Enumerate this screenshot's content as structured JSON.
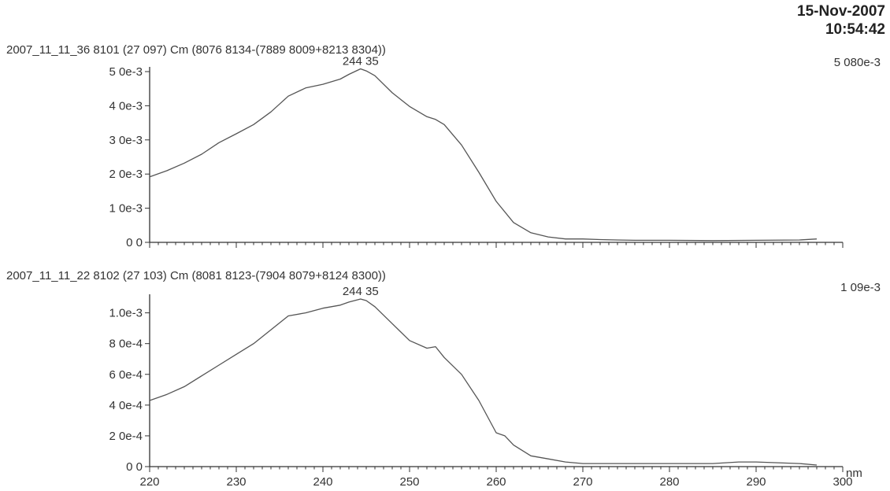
{
  "timestamp": {
    "date": "15-Nov-2007",
    "time": "10:54:42"
  },
  "chart_data": [
    {
      "type": "line",
      "header": "2007_11_11_36 8101 (27 097) Cm (8076 8134-(7889 8009+8213 8304))",
      "peak_label": "244 35",
      "max_label": "5 080e-3",
      "xlabel": "",
      "ylabel": "",
      "xlim": [
        220,
        300
      ],
      "ylim": [
        0,
        0.005
      ],
      "yticks": [
        0,
        0.001,
        0.002,
        0.003,
        0.004,
        0.005
      ],
      "ytick_labels": [
        "0 0",
        "1 0e-3",
        "2 0e-3",
        "3 0e-3",
        "4 0e-3",
        "5 0e-3"
      ],
      "series": [
        {
          "x": [
            220,
            222,
            224,
            226,
            228,
            230,
            232,
            234,
            235,
            236,
            238,
            240,
            242,
            243,
            244.35,
            245,
            246,
            248,
            250,
            252,
            253,
            254,
            256,
            258,
            260,
            262,
            264,
            266,
            268,
            270,
            272,
            274,
            276,
            280,
            285,
            290,
            295,
            297
          ],
          "y": [
            0.00192,
            0.0021,
            0.00232,
            0.00258,
            0.00292,
            0.00318,
            0.00345,
            0.00382,
            0.00405,
            0.00428,
            0.00452,
            0.00463,
            0.00478,
            0.00492,
            0.00508,
            0.00502,
            0.00488,
            0.00438,
            0.00398,
            0.00368,
            0.0036,
            0.00345,
            0.00285,
            0.00205,
            0.0012,
            0.00058,
            0.00028,
            0.00016,
            0.0001,
            0.0001,
            8e-05,
            7e-05,
            6e-05,
            6e-05,
            5e-05,
            6e-05,
            7e-05,
            0.0001
          ]
        }
      ]
    },
    {
      "type": "line",
      "header": "2007_11_11_22 8102 (27 103) Cm (8081 8123-(7904 8079+8124 8300))",
      "peak_label": "244 35",
      "max_label": "1 09e-3",
      "xlabel": "nm",
      "ylabel": "",
      "xlim": [
        220,
        300
      ],
      "ylim": [
        0,
        0.00109
      ],
      "xticks": [
        220,
        230,
        240,
        250,
        260,
        270,
        280,
        290,
        300
      ],
      "yticks": [
        0,
        0.0002,
        0.0004,
        0.0006,
        0.0008,
        0.001
      ],
      "ytick_labels": [
        "0 0",
        "2 0e-4",
        "4 0e-4",
        "6 0e-4",
        "8 0e-4",
        "1.0e-3"
      ],
      "series": [
        {
          "x": [
            220,
            222,
            224,
            226,
            228,
            230,
            232,
            234,
            236,
            238,
            240,
            242,
            243,
            244.35,
            245,
            246,
            248,
            250,
            252,
            253,
            254,
            256,
            258,
            260,
            261,
            262,
            264,
            266,
            268,
            270,
            272,
            275,
            280,
            285,
            288,
            290,
            295,
            297
          ],
          "y": [
            0.00043,
            0.00047,
            0.00052,
            0.00059,
            0.00066,
            0.00073,
            0.0008,
            0.00089,
            0.00098,
            0.001,
            0.00103,
            0.00105,
            0.00107,
            0.00109,
            0.00108,
            0.00104,
            0.00093,
            0.00082,
            0.00077,
            0.00078,
            0.00071,
            0.0006,
            0.00043,
            0.00022,
            0.0002,
            0.00014,
            7e-05,
            5e-05,
            3e-05,
            2e-05,
            2e-05,
            2e-05,
            2e-05,
            2e-05,
            3e-05,
            3e-05,
            2e-05,
            1e-05
          ]
        }
      ]
    }
  ]
}
